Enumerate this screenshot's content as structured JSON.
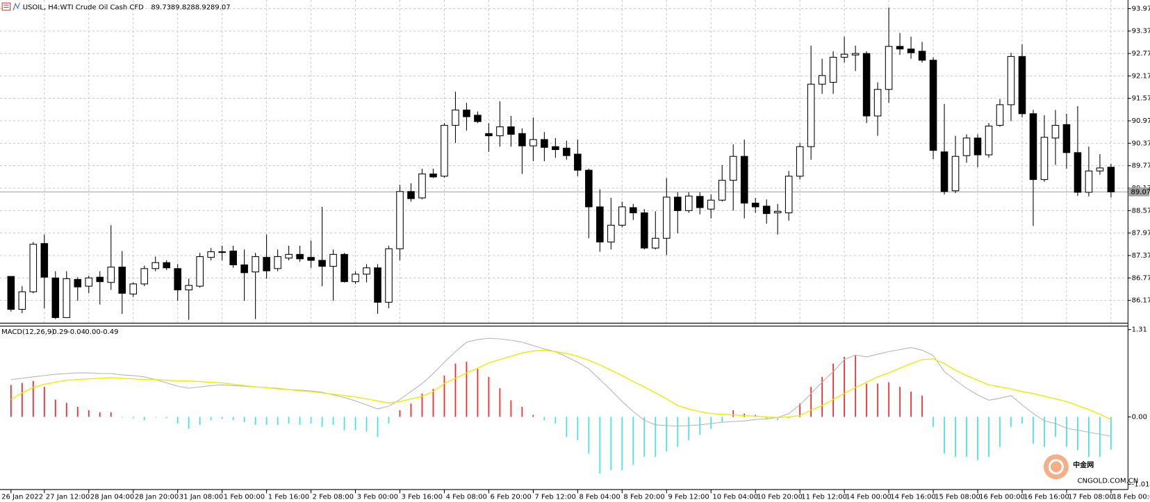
{
  "chart_data": [
    {
      "type": "candlestick",
      "symbol": "USOIL, H4:",
      "title": "WTI Crude Oil Cash CFD",
      "categories": [
        "26 Jan 2022",
        null,
        null,
        "27 Jan 12:00",
        null,
        null,
        null,
        "28 Jan 04:00",
        null,
        null,
        null,
        "28 Jan 20:00",
        null,
        null,
        null,
        "31 Jan 08:00",
        null,
        null,
        null,
        "1 Feb 00:00",
        null,
        null,
        null,
        "1 Feb 16:00",
        null,
        null,
        null,
        "2 Feb 08:00",
        null,
        null,
        null,
        "3 Feb 00:00",
        null,
        null,
        null,
        "3 Feb 16:00",
        null,
        null,
        null,
        "4 Feb 08:00",
        null,
        null,
        null,
        "6 Feb 20:00",
        null,
        null,
        null,
        "7 Feb 12:00",
        null,
        null,
        null,
        "8 Feb 04:00",
        null,
        null,
        null,
        "8 Feb 20:00",
        null,
        null,
        null,
        "9 Feb 12:00",
        null,
        null,
        null,
        "10 Feb 04:00",
        null,
        null,
        null,
        "10 Feb 20:00",
        null,
        null,
        null,
        "11 Feb 12:00",
        null,
        null,
        null,
        "14 Feb 00:00",
        null,
        null,
        null,
        "14 Feb 16:00",
        null,
        null,
        null,
        "15 Feb 08:00",
        null,
        null,
        null,
        "16 Feb 00:00",
        null,
        null,
        null,
        "16 Feb 16:00",
        null,
        null,
        null,
        "17 Feb 08:00",
        null,
        null,
        null,
        "18 Feb 00:00"
      ],
      "ohlc": [
        [
          86.81,
          86.81,
          85.87,
          85.93
        ],
        [
          85.93,
          86.55,
          85.83,
          86.4
        ],
        [
          86.4,
          87.73,
          86.36,
          87.67
        ],
        [
          87.69,
          87.93,
          85.96,
          86.79
        ],
        [
          86.77,
          86.95,
          85.67,
          85.71
        ],
        [
          85.71,
          86.95,
          85.71,
          86.75
        ],
        [
          86.73,
          86.79,
          86.16,
          86.53
        ],
        [
          86.55,
          86.83,
          86.36,
          86.77
        ],
        [
          86.79,
          86.95,
          86.06,
          86.67
        ],
        [
          86.65,
          88.18,
          86.45,
          87.06
        ],
        [
          87.06,
          87.49,
          85.81,
          86.36
        ],
        [
          86.34,
          86.65,
          86.26,
          86.61
        ],
        [
          86.61,
          87.1,
          86.55,
          87.02
        ],
        [
          87.02,
          87.34,
          86.95,
          87.18
        ],
        [
          87.18,
          87.24,
          86.98,
          87.04
        ],
        [
          87.02,
          87.14,
          86.16,
          86.45
        ],
        [
          86.45,
          86.75,
          85.65,
          86.57
        ],
        [
          86.55,
          87.44,
          86.51,
          87.34
        ],
        [
          87.32,
          87.57,
          87.24,
          87.47
        ],
        [
          87.45,
          87.63,
          87.24,
          87.47
        ],
        [
          87.49,
          87.63,
          87.04,
          87.12
        ],
        [
          87.12,
          87.53,
          86.16,
          86.91
        ],
        [
          86.93,
          87.44,
          85.67,
          87.34
        ],
        [
          87.32,
          87.93,
          86.75,
          86.96
        ],
        [
          87.02,
          87.53,
          86.95,
          87.34
        ],
        [
          87.3,
          87.63,
          87.24,
          87.4
        ],
        [
          87.4,
          87.63,
          87.2,
          87.28
        ],
        [
          87.32,
          87.77,
          87.04,
          87.24
        ],
        [
          87.24,
          88.67,
          86.55,
          87.08
        ],
        [
          87.08,
          87.53,
          86.16,
          87.4
        ],
        [
          87.4,
          87.44,
          86.65,
          86.67
        ],
        [
          86.67,
          86.95,
          86.61,
          86.87
        ],
        [
          86.87,
          87.14,
          86.65,
          87.04
        ],
        [
          87.04,
          87.14,
          85.81,
          86.12
        ],
        [
          86.12,
          87.63,
          85.96,
          87.55
        ],
        [
          87.55,
          89.26,
          87.24,
          89.08
        ],
        [
          89.08,
          89.3,
          88.81,
          88.89
        ],
        [
          88.91,
          89.69,
          88.87,
          89.55
        ],
        [
          89.55,
          89.69,
          89.44,
          89.47
        ],
        [
          89.49,
          90.91,
          89.45,
          90.85
        ],
        [
          90.85,
          91.75,
          90.38,
          91.26
        ],
        [
          91.26,
          91.45,
          90.71,
          91.08
        ],
        [
          91.12,
          91.22,
          90.91,
          90.95
        ],
        [
          90.63,
          90.91,
          90.14,
          90.57
        ],
        [
          90.57,
          91.49,
          90.28,
          90.81
        ],
        [
          90.81,
          91.1,
          90.28,
          90.61
        ],
        [
          90.63,
          90.77,
          89.55,
          90.3
        ],
        [
          90.3,
          91.06,
          89.89,
          90.47
        ],
        [
          90.47,
          90.67,
          89.89,
          90.26
        ],
        [
          90.28,
          90.51,
          89.98,
          90.2
        ],
        [
          90.24,
          90.44,
          89.93,
          90.04
        ],
        [
          90.08,
          90.47,
          89.49,
          89.65
        ],
        [
          89.65,
          89.69,
          87.83,
          88.67
        ],
        [
          88.67,
          89.14,
          87.47,
          87.73
        ],
        [
          87.73,
          88.91,
          87.53,
          88.18
        ],
        [
          88.18,
          88.81,
          88.12,
          88.67
        ],
        [
          88.65,
          88.75,
          88.32,
          88.51
        ],
        [
          88.51,
          88.61,
          87.53,
          87.57
        ],
        [
          87.57,
          88.55,
          87.53,
          87.83
        ],
        [
          87.83,
          89.44,
          87.38,
          88.93
        ],
        [
          88.93,
          89.06,
          87.96,
          88.57
        ],
        [
          88.57,
          89.06,
          88.51,
          88.96
        ],
        [
          88.95,
          89.06,
          88.47,
          88.65
        ],
        [
          88.61,
          89.0,
          88.36,
          88.85
        ],
        [
          88.85,
          89.79,
          88.81,
          89.38
        ],
        [
          89.38,
          90.34,
          88.57,
          90.02
        ],
        [
          90.02,
          90.47,
          88.36,
          88.77
        ],
        [
          88.77,
          88.91,
          88.51,
          88.67
        ],
        [
          88.69,
          88.87,
          88.22,
          88.49
        ],
        [
          88.51,
          88.75,
          87.93,
          88.55
        ],
        [
          88.51,
          89.63,
          88.3,
          89.49
        ],
        [
          89.49,
          90.38,
          89.4,
          90.28
        ],
        [
          90.28,
          92.98,
          89.93,
          91.95
        ],
        [
          91.95,
          92.63,
          91.69,
          92.18
        ],
        [
          92.0,
          92.83,
          91.69,
          92.67
        ],
        [
          92.67,
          93.22,
          92.53,
          92.75
        ],
        [
          92.73,
          92.98,
          92.3,
          92.77
        ],
        [
          92.77,
          92.83,
          90.91,
          91.1
        ],
        [
          91.1,
          92.0,
          90.57,
          91.81
        ],
        [
          91.81,
          94.0,
          91.45,
          92.96
        ],
        [
          92.96,
          93.32,
          92.73,
          92.89
        ],
        [
          92.89,
          93.22,
          92.63,
          92.79
        ],
        [
          92.83,
          93.08,
          92.53,
          92.59
        ],
        [
          92.59,
          92.67,
          89.95,
          90.18
        ],
        [
          90.14,
          91.42,
          89.0,
          89.08
        ],
        [
          89.1,
          90.57,
          89.04,
          90.02
        ],
        [
          90.04,
          90.61,
          89.85,
          90.51
        ],
        [
          90.51,
          90.61,
          89.73,
          90.06
        ],
        [
          90.06,
          90.91,
          89.98,
          90.83
        ],
        [
          90.85,
          91.55,
          90.81,
          91.4
        ],
        [
          91.4,
          92.79,
          90.96,
          92.69
        ],
        [
          92.69,
          93.02,
          91.06,
          91.16
        ],
        [
          91.16,
          91.26,
          88.16,
          89.4
        ],
        [
          89.4,
          91.12,
          89.34,
          90.53
        ],
        [
          90.51,
          91.26,
          89.79,
          90.85
        ],
        [
          90.87,
          91.16,
          89.69,
          90.12
        ],
        [
          90.12,
          91.36,
          88.96,
          89.06
        ],
        [
          89.06,
          90.28,
          88.95,
          89.63
        ],
        [
          89.63,
          90.08,
          89.53,
          89.71
        ],
        [
          89.73,
          89.82,
          88.92,
          89.07
        ]
      ],
      "up_color": "#ffffff",
      "down_color": "#000000",
      "price_line_color": "#a0a0a0",
      "ylim": [
        85.58,
        94.2
      ],
      "yticks": [
        86.17,
        86.77,
        87.37,
        87.97,
        88.57,
        89.17,
        89.77,
        90.37,
        90.97,
        91.57,
        92.17,
        92.77,
        93.37,
        93.97
      ],
      "grid": true
    },
    {
      "type": "macd",
      "title": "MACD(12,26,9)",
      "series": [
        {
          "color": "#b4b4b4",
          "values": [
            0.56,
            0.58,
            0.6,
            0.62,
            0.64,
            0.65,
            0.66,
            0.66,
            0.65,
            0.65,
            0.63,
            0.62,
            0.6,
            0.56,
            0.51,
            0.46,
            0.43,
            0.45,
            0.47,
            0.48,
            0.47,
            0.46,
            0.45,
            0.44,
            0.43,
            0.41,
            0.4,
            0.39,
            0.37,
            0.33,
            0.29,
            0.24,
            0.18,
            0.12,
            0.16,
            0.26,
            0.38,
            0.5,
            0.65,
            0.82,
            0.98,
            1.12,
            1.16,
            1.18,
            1.17,
            1.15,
            1.12,
            1.07,
            1.02,
            0.98,
            0.9,
            0.82,
            0.72,
            0.56,
            0.4,
            0.23,
            0.08,
            -0.05,
            -0.12,
            -0.13,
            -0.14,
            -0.13,
            -0.12,
            -0.1,
            -0.08,
            -0.07,
            -0.06,
            -0.04,
            -0.03,
            -0.01,
            0.05,
            0.18,
            0.35,
            0.52,
            0.68,
            0.86,
            0.93,
            0.9,
            0.94,
            0.98,
            1.01,
            1.04,
            1.0,
            0.92,
            0.68,
            0.55,
            0.43,
            0.33,
            0.25,
            0.28,
            0.32,
            0.18,
            0.05,
            -0.06,
            -0.1,
            -0.17,
            -0.2,
            -0.23,
            -0.26,
            -0.29
          ]
        },
        {
          "color": "#f0e800",
          "values": [
            0.26,
            0.36,
            0.44,
            0.49,
            0.52,
            0.55,
            0.56,
            0.57,
            0.58,
            0.59,
            0.58,
            0.57,
            0.56,
            0.56,
            0.55,
            0.54,
            0.54,
            0.53,
            0.52,
            0.51,
            0.49,
            0.47,
            0.45,
            0.44,
            0.42,
            0.41,
            0.39,
            0.38,
            0.36,
            0.34,
            0.32,
            0.3,
            0.27,
            0.24,
            0.21,
            0.23,
            0.27,
            0.31,
            0.38,
            0.5,
            0.58,
            0.66,
            0.73,
            0.81,
            0.86,
            0.91,
            0.96,
            0.99,
            1.0,
            0.98,
            0.95,
            0.91,
            0.85,
            0.78,
            0.7,
            0.62,
            0.53,
            0.45,
            0.36,
            0.27,
            0.17,
            0.12,
            0.08,
            0.05,
            0.04,
            0.03,
            0.02,
            0.01,
            0.0,
            -0.01,
            0.0,
            0.02,
            0.1,
            0.17,
            0.26,
            0.35,
            0.44,
            0.52,
            0.6,
            0.66,
            0.73,
            0.8,
            0.86,
            0.87,
            0.8,
            0.7,
            0.62,
            0.55,
            0.48,
            0.45,
            0.42,
            0.38,
            0.35,
            0.31,
            0.27,
            0.23,
            0.17,
            0.11,
            0.04,
            -0.04
          ]
        }
      ],
      "histogram": {
        "values": [
          0.48,
          0.51,
          0.54,
          0.45,
          0.26,
          0.21,
          0.15,
          0.1,
          0.07,
          0.07,
          -0.01,
          -0.02,
          -0.05,
          -0.01,
          -0.02,
          -0.1,
          -0.18,
          -0.12,
          -0.05,
          -0.03,
          -0.05,
          -0.08,
          -0.12,
          -0.12,
          -0.12,
          -0.1,
          -0.12,
          -0.1,
          -0.15,
          -0.12,
          -0.2,
          -0.2,
          -0.22,
          -0.3,
          -0.1,
          0.1,
          0.2,
          0.35,
          0.42,
          0.62,
          0.8,
          0.83,
          0.72,
          0.6,
          0.43,
          0.25,
          0.15,
          0.03,
          -0.05,
          -0.1,
          -0.3,
          -0.35,
          -0.55,
          -0.85,
          -0.8,
          -0.8,
          -0.72,
          -0.6,
          -0.6,
          -0.52,
          -0.45,
          -0.35,
          -0.27,
          -0.18,
          -0.08,
          0.1,
          0.05,
          0.03,
          -0.03,
          -0.05,
          -0.02,
          0.2,
          0.45,
          0.6,
          0.8,
          0.9,
          0.92,
          0.5,
          0.5,
          0.52,
          0.45,
          0.38,
          0.32,
          -0.15,
          -0.55,
          -0.6,
          -0.6,
          -0.65,
          -0.6,
          -0.45,
          -0.15,
          -0.1,
          -0.4,
          -0.45,
          -0.3,
          -0.45,
          -0.5,
          -0.6,
          -0.6,
          -0.49
        ],
        "up_color": "#ff2020",
        "down_color": "#40e0e0",
        "positive_readout": {
          "value": 0,
          "label": "0.00"
        }
      },
      "ylim": [
        -1.09,
        1.34
      ],
      "yticks": [
        1.31,
        {
          "value": 0,
          "label": "0.00"
        },
        -1.01
      ]
    },
    {
      "type": "watermark",
      "name": "中金网",
      "url": "CNGOLD.COM.CN"
    }
  ]
}
